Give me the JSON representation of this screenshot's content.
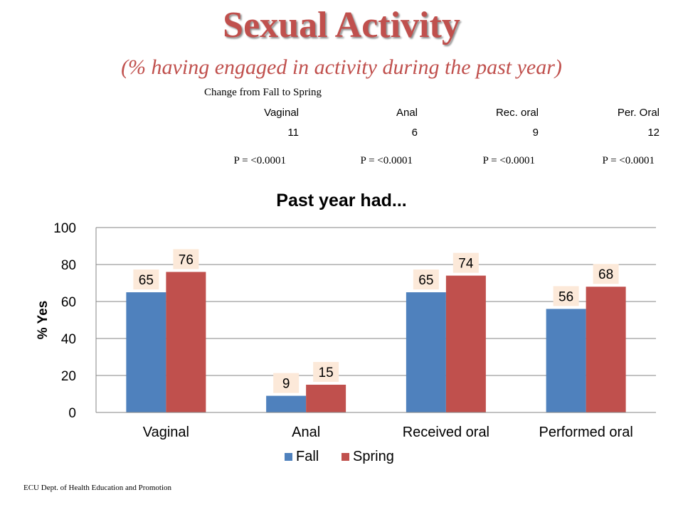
{
  "slide": {
    "title": "Sexual Activity",
    "subtitle": "(% having engaged in activity during the past year)",
    "footer": "ECU Dept. of Health Education and Promotion"
  },
  "change_table": {
    "caption": "Change  from Fall to Spring",
    "headers": [
      "Vaginal",
      "Anal",
      "Rec. oral",
      "Per. Oral"
    ],
    "values": [
      "11",
      "6",
      "9",
      "12"
    ],
    "p_values": [
      "P = <0.0001",
      "P = <0.0001",
      "P = <0.0001",
      "P = <0.0001"
    ]
  },
  "chart_data": {
    "type": "bar",
    "title": "Past year had...",
    "xlabel": "",
    "ylabel": "% Yes",
    "ylim": [
      0,
      100
    ],
    "yticks": [
      "0",
      "20",
      "40",
      "60",
      "80",
      "100"
    ],
    "categories": [
      "Vaginal",
      "Anal",
      "Received oral",
      "Performed oral"
    ],
    "series": [
      {
        "name": "Fall",
        "values": [
          65,
          9,
          65,
          56
        ],
        "color": "#4f81bd"
      },
      {
        "name": "Spring",
        "values": [
          76,
          15,
          74,
          68
        ],
        "color": "#c0504d"
      }
    ],
    "grid": true,
    "legend": "bottom",
    "data_label_bg": "#fce9d9"
  }
}
